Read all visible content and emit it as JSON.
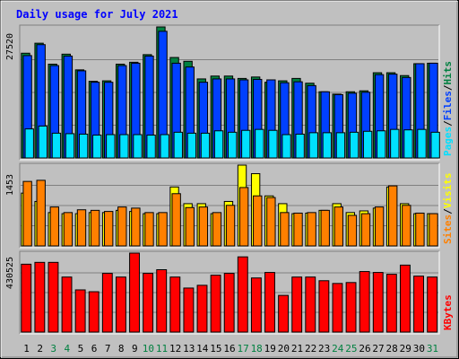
{
  "title": "Daily usage for July 2021",
  "colors": {
    "background": "#c0c0c0",
    "title": "#0000ff",
    "hits": "#008040",
    "files": "#0040ff",
    "pages": "#00e0ff",
    "visits": "#ffff00",
    "sites": "#ff8000",
    "kbytes": "#ff0000",
    "weekend_day_label": "#008040",
    "weekday_label": "#000000"
  },
  "chart_data": [
    {
      "type": "bar",
      "panel": "hits-files-pages",
      "max_label": "27520",
      "ylim": [
        0,
        27520
      ],
      "legend": [
        "Pages",
        "Files",
        "Hits"
      ],
      "categories": [
        "1",
        "2",
        "3",
        "4",
        "5",
        "6",
        "7",
        "8",
        "9",
        "10",
        "11",
        "12",
        "13",
        "14",
        "15",
        "16",
        "17",
        "18",
        "19",
        "20",
        "21",
        "22",
        "23",
        "24",
        "25",
        "26",
        "27",
        "28",
        "29",
        "30",
        "31"
      ],
      "series": [
        {
          "name": "Hits",
          "values": [
            22000,
            24100,
            19700,
            21800,
            18500,
            16100,
            16200,
            19700,
            20100,
            21700,
            27520,
            21100,
            20300,
            16600,
            17200,
            17200,
            16700,
            17000,
            15900,
            16200,
            16700,
            15700,
            13900,
            13400,
            13900,
            14100,
            17900,
            17900,
            17300,
            19800,
            19900
          ]
        },
        {
          "name": "Files",
          "values": [
            21500,
            23800,
            19400,
            21400,
            18300,
            15900,
            15900,
            19400,
            19900,
            21400,
            26600,
            19900,
            19100,
            15900,
            16600,
            16600,
            16400,
            16500,
            16400,
            15800,
            16000,
            15200,
            13900,
            13300,
            13600,
            13800,
            17500,
            17600,
            16900,
            19800,
            19900
          ]
        },
        {
          "name": "Pages",
          "values": [
            6100,
            6700,
            5200,
            5100,
            5000,
            4800,
            4900,
            4900,
            4900,
            4800,
            4900,
            5400,
            5200,
            5200,
            5700,
            5400,
            5800,
            6000,
            5800,
            4900,
            5000,
            5300,
            5300,
            5300,
            5400,
            5600,
            5700,
            6000,
            5900,
            6000,
            5400
          ]
        }
      ]
    },
    {
      "type": "bar",
      "panel": "visits-sites",
      "max_label": "1453",
      "ylim": [
        0,
        1453
      ],
      "legend": [
        "Sites",
        "Visits"
      ],
      "categories": [
        "1",
        "2",
        "3",
        "4",
        "5",
        "6",
        "7",
        "8",
        "9",
        "10",
        "11",
        "12",
        "13",
        "14",
        "15",
        "16",
        "17",
        "18",
        "19",
        "20",
        "21",
        "22",
        "23",
        "24",
        "25",
        "26",
        "27",
        "28",
        "29",
        "30",
        "31"
      ],
      "series": [
        {
          "name": "Visits",
          "values": [
            950,
            800,
            600,
            580,
            580,
            600,
            600,
            640,
            620,
            580,
            580,
            1060,
            760,
            760,
            580,
            800,
            1453,
            1300,
            900,
            760,
            580,
            590,
            640,
            760,
            600,
            630,
            680,
            1060,
            760,
            580,
            580
          ]
        },
        {
          "name": "Sites",
          "values": [
            1160,
            1180,
            700,
            600,
            650,
            640,
            620,
            700,
            680,
            600,
            600,
            940,
            690,
            700,
            600,
            730,
            1050,
            900,
            870,
            600,
            590,
            600,
            640,
            700,
            550,
            580,
            700,
            1080,
            730,
            590,
            580
          ]
        }
      ]
    },
    {
      "type": "bar",
      "panel": "kbytes",
      "max_label": "430525",
      "ylim": [
        0,
        430525
      ],
      "legend": [
        "KBytes"
      ],
      "categories": [
        "1",
        "2",
        "3",
        "4",
        "5",
        "6",
        "7",
        "8",
        "9",
        "10",
        "11",
        "12",
        "13",
        "14",
        "15",
        "16",
        "17",
        "18",
        "19",
        "20",
        "21",
        "22",
        "23",
        "24",
        "25",
        "26",
        "27",
        "28",
        "29",
        "30",
        "31"
      ],
      "series": [
        {
          "name": "KBytes",
          "values": [
            370000,
            380000,
            380000,
            300000,
            230000,
            220000,
            320000,
            300000,
            430525,
            320000,
            340000,
            300000,
            240000,
            255000,
            310000,
            320000,
            410000,
            295000,
            325000,
            200000,
            300000,
            300000,
            280000,
            265000,
            270000,
            330000,
            325000,
            315000,
            365000,
            305000,
            300000
          ]
        }
      ]
    }
  ]
}
